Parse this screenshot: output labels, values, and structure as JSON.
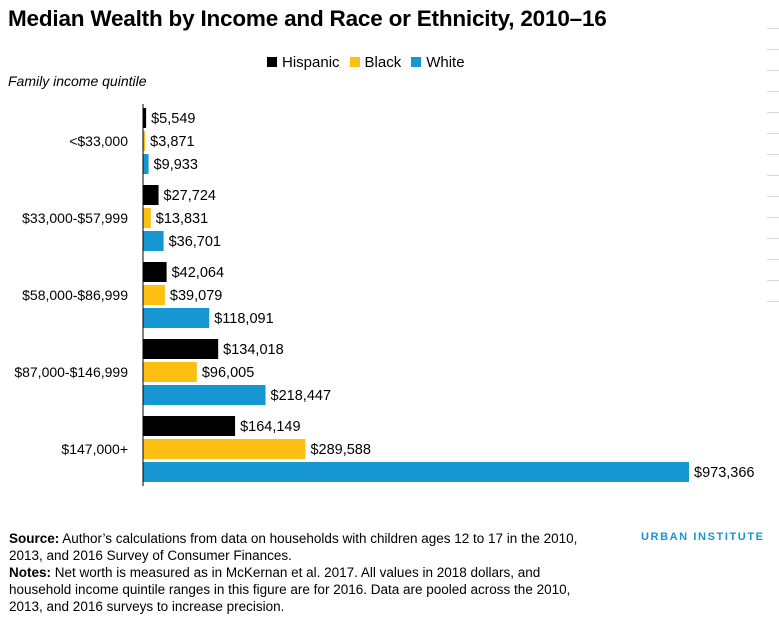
{
  "title": "Median Wealth by Income and Race or Ethnicity, 2010–16",
  "subtitle": "Family income quintile",
  "legend": [
    {
      "label": "Hispanic",
      "color": "#000000"
    },
    {
      "label": "Black",
      "color": "#fdbf11"
    },
    {
      "label": "White",
      "color": "#1696d2"
    }
  ],
  "chart_data": {
    "type": "bar",
    "orientation": "horizontal",
    "categories": [
      "<$33,000",
      "$33,000-$57,999",
      "$58,000-$86,999",
      "$87,000-$146,999",
      "$147,000+"
    ],
    "series": [
      {
        "name": "Hispanic",
        "color": "#000000",
        "values": [
          5549,
          27724,
          42064,
          134018,
          164149
        ],
        "labels": [
          "$5,549",
          "$27,724",
          "$42,064",
          "$134,018",
          "$164,149"
        ]
      },
      {
        "name": "Black",
        "color": "#fdbf11",
        "values": [
          3871,
          13831,
          39079,
          96005,
          289588
        ],
        "labels": [
          "$3,871",
          "$13,831",
          "$39,079",
          "$96,005",
          "$289,588"
        ]
      },
      {
        "name": "White",
        "color": "#1696d2",
        "values": [
          9933,
          36701,
          118091,
          218447,
          973366
        ],
        "labels": [
          "$9,933",
          "$36,701",
          "$118,091",
          "$218,447",
          "$973,366"
        ]
      }
    ],
    "xlim": [
      0,
      973366
    ],
    "grid": false,
    "legend_position": "top-center"
  },
  "footer": {
    "source_label": "Source:",
    "source_text": " Author’s calculations from data on households with children ages 12 to 17 in the 2010, 2013, and 2016 Survey of Consumer Finances.",
    "notes_label": "Notes:",
    "notes_text": " Net worth is measured as in McKernan et al. 2017. All values in 2018 dollars, and household income quintile ranges in this figure are for 2016. Data are pooled across the 2010, 2013, and 2016 surveys to increase precision."
  },
  "brand": "URBAN INSTITUTE"
}
